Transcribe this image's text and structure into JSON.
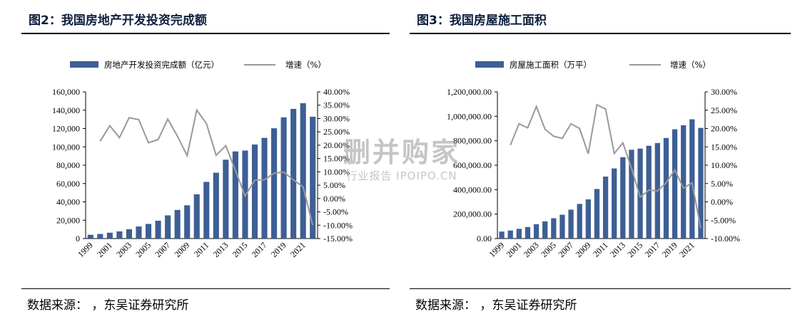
{
  "panels": [
    {
      "title": "图2：我国房地产开发投资完成额",
      "source": "数据来源：          ，东吴证券研究所"
    },
    {
      "title": "图3：我国房屋施工面积",
      "source": "数据来源：          ，东吴证券研究所"
    }
  ],
  "watermark": {
    "line1": "删并购家",
    "line2": "行业报告 IPOIPO.CN"
  },
  "chart_data": [
    {
      "type": "bar",
      "title": "",
      "categories": [
        "1999",
        "2000",
        "2001",
        "2002",
        "2003",
        "2004",
        "2005",
        "2006",
        "2007",
        "2008",
        "2009",
        "2010",
        "2011",
        "2012",
        "2013",
        "2014",
        "2015",
        "2016",
        "2017",
        "2018",
        "2019",
        "2020",
        "2021",
        "2022"
      ],
      "x_tick_labels": [
        "1999",
        "2001",
        "2003",
        "2005",
        "2007",
        "2009",
        "2011",
        "2013",
        "2015",
        "2017",
        "2019",
        "2021"
      ],
      "series": [
        {
          "name": "房地产开发投资完成额（亿元）",
          "axis": "left",
          "kind": "bar",
          "color": "#3d5f95",
          "values": [
            4100,
            4984,
            6344,
            7791,
            10154,
            13158,
            15909,
            19423,
            25289,
            31203,
            36242,
            48259,
            61797,
            71804,
            86013,
            95036,
            95979,
            102581,
            109799,
            120264,
            132194,
            141443,
            147602,
            132895
          ]
        },
        {
          "name": "增速（%）",
          "axis": "right",
          "kind": "line",
          "color": "#999999",
          "values": [
            null,
            21.5,
            27.3,
            22.8,
            30.3,
            29.6,
            20.9,
            22.1,
            29.8,
            23.4,
            16.1,
            33.2,
            28.1,
            16.2,
            19.8,
            10.5,
            1.0,
            6.9,
            7.0,
            9.5,
            9.9,
            7.0,
            4.4,
            -10.0
          ]
        }
      ],
      "y_left": {
        "min": 0,
        "max": 160000,
        "step": 20000,
        "tick_labels": [
          "0",
          "20,000",
          "40,000",
          "60,000",
          "80,000",
          "100,000",
          "120,000",
          "140,000",
          "160,000"
        ]
      },
      "y_right": {
        "min": -15,
        "max": 40,
        "step": 5,
        "tick_labels": [
          "-15.00%",
          "-10.00%",
          "-5.00%",
          "0.00%",
          "5.00%",
          "10.00%",
          "15.00%",
          "20.00%",
          "25.00%",
          "30.00%",
          "35.00%",
          "40.00%"
        ]
      },
      "legend": "top",
      "grid": false
    },
    {
      "type": "bar",
      "title": "",
      "categories": [
        "1999",
        "2000",
        "2001",
        "2002",
        "2003",
        "2004",
        "2005",
        "2006",
        "2007",
        "2008",
        "2009",
        "2010",
        "2011",
        "2012",
        "2013",
        "2014",
        "2015",
        "2016",
        "2017",
        "2018",
        "2019",
        "2020",
        "2021",
        "2022"
      ],
      "x_tick_labels": [
        "1999",
        "2001",
        "2003",
        "2005",
        "2007",
        "2009",
        "2011",
        "2013",
        "2015",
        "2017",
        "2019",
        "2021"
      ],
      "series": [
        {
          "name": "房屋施工面积（万平）",
          "axis": "left",
          "kind": "bar",
          "color": "#3d5f95",
          "values": [
            56858,
            65897,
            79412,
            94104,
            117526,
            140451,
            166053,
            194786,
            236318,
            283266,
            320368,
            405356,
            506775,
            573418,
            665572,
            726482,
            735693,
            758975,
            781484,
            822300,
            893821,
            926759,
            975387,
            904999
          ]
        },
        {
          "name": "增速（%）",
          "axis": "right",
          "kind": "line",
          "color": "#999999",
          "values": [
            null,
            15.5,
            21.3,
            20.2,
            26.0,
            19.8,
            17.9,
            17.3,
            21.3,
            20.0,
            13.1,
            26.5,
            25.3,
            13.2,
            16.1,
            9.2,
            1.3,
            3.2,
            3.0,
            5.2,
            8.7,
            3.7,
            5.2,
            -7.2
          ]
        }
      ],
      "y_left": {
        "min": 0,
        "max": 1200000,
        "step": 200000,
        "tick_labels": [
          "0.00",
          "200,000.00",
          "400,000.00",
          "600,000.00",
          "800,000.00",
          "1,000,000.00",
          "1,200,000.00"
        ]
      },
      "y_right": {
        "min": -10,
        "max": 30,
        "step": 5,
        "tick_labels": [
          "-10.00%",
          "-5.00%",
          "0.00%",
          "5.00%",
          "10.00%",
          "15.00%",
          "20.00%",
          "25.00%",
          "30.00%"
        ]
      },
      "legend": "top",
      "grid": false
    }
  ]
}
